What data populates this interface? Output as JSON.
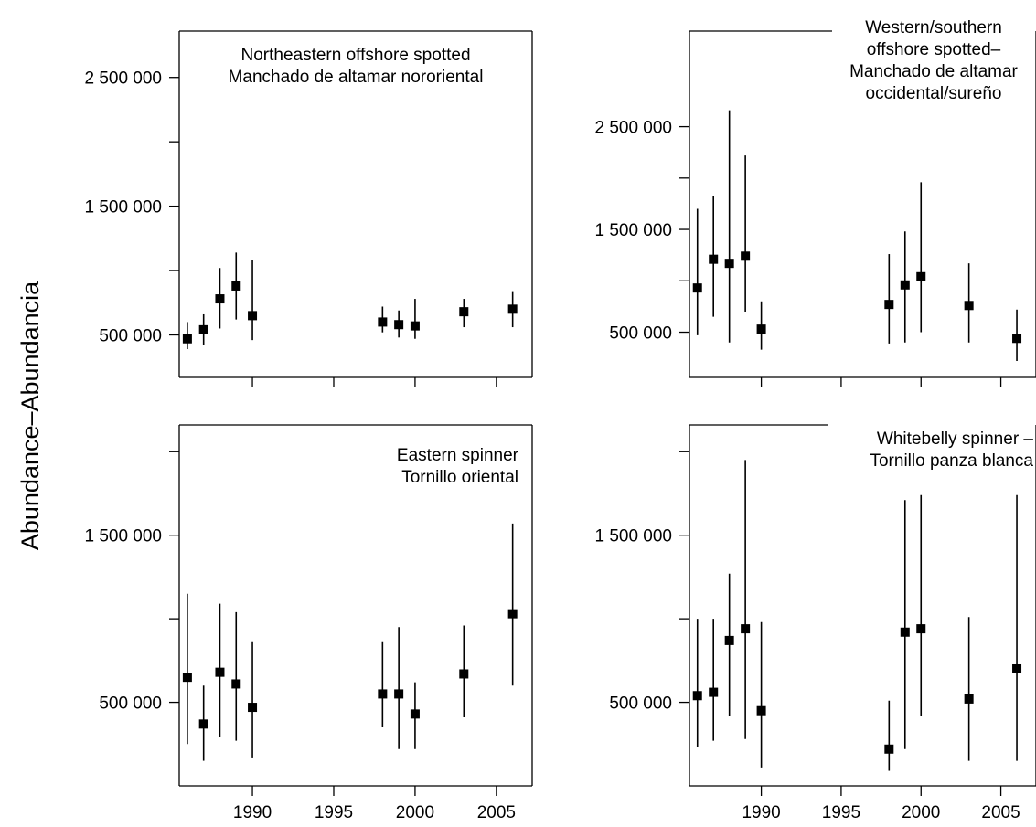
{
  "figure": {
    "ylabel": "Abundance–Abundancia"
  },
  "chart_data": [
    {
      "type": "scatter",
      "title_lines": [
        "Northeastern offshore spotted",
        "Manchado de altamar nororiental"
      ],
      "xlabel": "",
      "ylabel": "Abundance–Abundancia",
      "xlim": [
        1985.5,
        2007.2
      ],
      "ylim": [
        170000,
        2860000
      ],
      "x_ticks": [
        1990,
        1995,
        2000,
        2005
      ],
      "x_tick_labels": [],
      "y_ticks": [
        500000,
        1000000,
        1500000,
        2000000,
        2500000
      ],
      "y_tick_labels": [
        "500 000",
        "",
        "1 500 000",
        "",
        "2 500 000"
      ],
      "grid": false,
      "legend": "none",
      "series": [
        {
          "points": [
            {
              "x": 1986,
              "y": 470000,
              "lo": 390000,
              "hi": 600000
            },
            {
              "x": 1987,
              "y": 540000,
              "lo": 420000,
              "hi": 660000
            },
            {
              "x": 1988,
              "y": 780000,
              "lo": 550000,
              "hi": 1020000
            },
            {
              "x": 1989,
              "y": 880000,
              "lo": 620000,
              "hi": 1140000
            },
            {
              "x": 1990,
              "y": 650000,
              "lo": 460000,
              "hi": 1080000
            },
            {
              "x": 1998,
              "y": 600000,
              "lo": 520000,
              "hi": 720000
            },
            {
              "x": 1999,
              "y": 580000,
              "lo": 480000,
              "hi": 690000
            },
            {
              "x": 2000,
              "y": 570000,
              "lo": 470000,
              "hi": 780000
            },
            {
              "x": 2003,
              "y": 680000,
              "lo": 560000,
              "hi": 780000
            },
            {
              "x": 2006,
              "y": 700000,
              "lo": 560000,
              "hi": 840000
            }
          ]
        }
      ]
    },
    {
      "type": "scatter",
      "title_lines": [
        "Western/southern",
        "offshore spotted–",
        "Manchado de altamar",
        "occidental/sureño"
      ],
      "xlabel": "",
      "ylabel": "",
      "xlim": [
        1985.5,
        2007.2
      ],
      "ylim": [
        60000,
        3430000
      ],
      "x_ticks": [
        1990,
        1995,
        2000,
        2005
      ],
      "x_tick_labels": [],
      "y_ticks": [
        500000,
        1000000,
        1500000,
        2000000,
        2500000
      ],
      "y_tick_labels": [
        "500 000",
        "",
        "1 500 000",
        "",
        "2 500 000"
      ],
      "grid": false,
      "legend": "none",
      "series": [
        {
          "points": [
            {
              "x": 1986,
              "y": 930000,
              "lo": 470000,
              "hi": 1700000
            },
            {
              "x": 1987,
              "y": 1210000,
              "lo": 650000,
              "hi": 1830000
            },
            {
              "x": 1988,
              "y": 1170000,
              "lo": 400000,
              "hi": 2660000
            },
            {
              "x": 1989,
              "y": 1240000,
              "lo": 700000,
              "hi": 2220000
            },
            {
              "x": 1990,
              "y": 530000,
              "lo": 330000,
              "hi": 800000
            },
            {
              "x": 1998,
              "y": 770000,
              "lo": 390000,
              "hi": 1260000
            },
            {
              "x": 1999,
              "y": 960000,
              "lo": 400000,
              "hi": 1480000
            },
            {
              "x": 2000,
              "y": 1040000,
              "lo": 500000,
              "hi": 1960000
            },
            {
              "x": 2003,
              "y": 760000,
              "lo": 400000,
              "hi": 1170000
            },
            {
              "x": 2006,
              "y": 440000,
              "lo": 220000,
              "hi": 720000
            }
          ]
        }
      ]
    },
    {
      "type": "scatter",
      "title_lines": [
        "Eastern spinner",
        "Tornillo oriental"
      ],
      "xlabel": "",
      "ylabel": "",
      "xlim": [
        1985.5,
        2007.2
      ],
      "ylim": [
        0,
        2160000
      ],
      "x_ticks": [
        1990,
        1995,
        2000,
        2005
      ],
      "x_tick_labels": [
        "1990",
        "1995",
        "2000",
        "2005"
      ],
      "y_ticks": [
        500000,
        1000000,
        1500000,
        2000000
      ],
      "y_tick_labels": [
        "500 000",
        "",
        "1 500 000",
        ""
      ],
      "grid": false,
      "legend": "none",
      "series": [
        {
          "points": [
            {
              "x": 1986,
              "y": 650000,
              "lo": 250000,
              "hi": 1150000
            },
            {
              "x": 1987,
              "y": 370000,
              "lo": 150000,
              "hi": 600000
            },
            {
              "x": 1988,
              "y": 680000,
              "lo": 290000,
              "hi": 1090000
            },
            {
              "x": 1989,
              "y": 610000,
              "lo": 270000,
              "hi": 1040000
            },
            {
              "x": 1990,
              "y": 470000,
              "lo": 170000,
              "hi": 860000
            },
            {
              "x": 1998,
              "y": 550000,
              "lo": 350000,
              "hi": 860000
            },
            {
              "x": 1999,
              "y": 550000,
              "lo": 220000,
              "hi": 950000
            },
            {
              "x": 2000,
              "y": 430000,
              "lo": 220000,
              "hi": 620000
            },
            {
              "x": 2003,
              "y": 670000,
              "lo": 410000,
              "hi": 960000
            },
            {
              "x": 2006,
              "y": 1030000,
              "lo": 600000,
              "hi": 1570000
            }
          ]
        }
      ]
    },
    {
      "type": "scatter",
      "title_lines": [
        "Whitebelly spinner –",
        "Tornillo panza blanca"
      ],
      "xlabel": "",
      "ylabel": "",
      "xlim": [
        1985.5,
        2007.2
      ],
      "ylim": [
        0,
        2160000
      ],
      "x_ticks": [
        1990,
        1995,
        2000,
        2005
      ],
      "x_tick_labels": [
        "1990",
        "1995",
        "2000",
        "2005"
      ],
      "y_ticks": [
        500000,
        1000000,
        1500000,
        2000000
      ],
      "y_tick_labels": [
        "500 000",
        "",
        "1 500 000",
        ""
      ],
      "grid": false,
      "legend": "none",
      "series": [
        {
          "points": [
            {
              "x": 1986,
              "y": 540000,
              "lo": 230000,
              "hi": 1000000
            },
            {
              "x": 1987,
              "y": 560000,
              "lo": 270000,
              "hi": 1000000
            },
            {
              "x": 1988,
              "y": 870000,
              "lo": 420000,
              "hi": 1270000
            },
            {
              "x": 1989,
              "y": 940000,
              "lo": 280000,
              "hi": 1950000
            },
            {
              "x": 1990,
              "y": 450000,
              "lo": 110000,
              "hi": 980000
            },
            {
              "x": 1998,
              "y": 220000,
              "lo": 90000,
              "hi": 510000
            },
            {
              "x": 1999,
              "y": 920000,
              "lo": 220000,
              "hi": 1710000
            },
            {
              "x": 2000,
              "y": 940000,
              "lo": 420000,
              "hi": 1740000
            },
            {
              "x": 2003,
              "y": 520000,
              "lo": 150000,
              "hi": 1010000
            },
            {
              "x": 2006,
              "y": 700000,
              "lo": 150000,
              "hi": 1740000
            }
          ]
        }
      ]
    }
  ]
}
